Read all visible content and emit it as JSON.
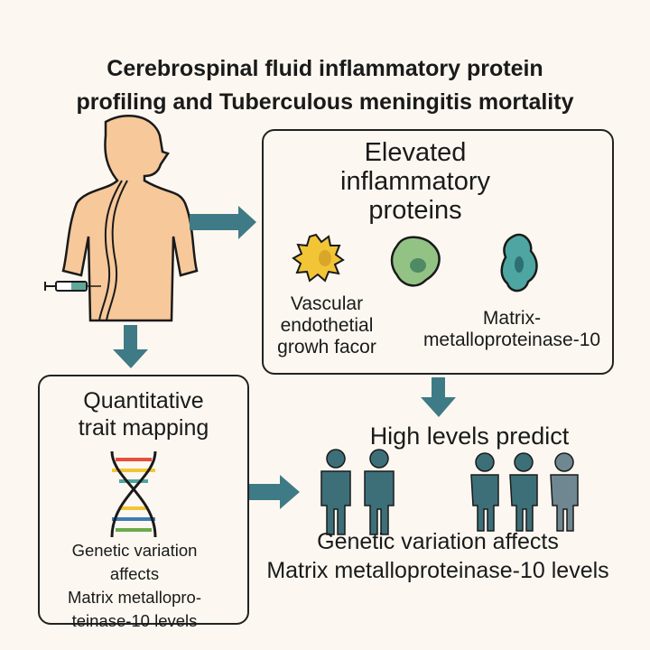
{
  "title": {
    "line1": "Cerebrospinal fluid inflammatory protein",
    "line2": "profiling and Tuberculous meningitis mortality"
  },
  "proteins_box": {
    "heading_line1": "Elevated",
    "heading_line2": "inflammatory",
    "heading_line3": "proteins",
    "label_vegf_line1": "Vascular",
    "label_vegf_line2": "endothetial",
    "label_vegf_line3": "growh facor",
    "label_mmp_line1": "Matrix-",
    "label_mmp_line2": "metalloproteinase-10"
  },
  "qtl_box": {
    "heading_line1": "Quantitative",
    "heading_line2": "trait mapping",
    "text_line1": "Genetic variation",
    "text_line2": "affects",
    "text_line3": "Matrix metallopro-",
    "text_line4": "teinase-10 levels"
  },
  "outcome": {
    "heading": "High levels predict",
    "text_line1": "Genetic variation affects",
    "text_line2": "Matrix metalloproteinase-10 levels"
  },
  "colors": {
    "arrow": "#3f7b86",
    "skin": "#f6c89a",
    "person_teal": "#3d6f78",
    "person_gray": "#6f8790",
    "background": "#fcf8f1"
  }
}
